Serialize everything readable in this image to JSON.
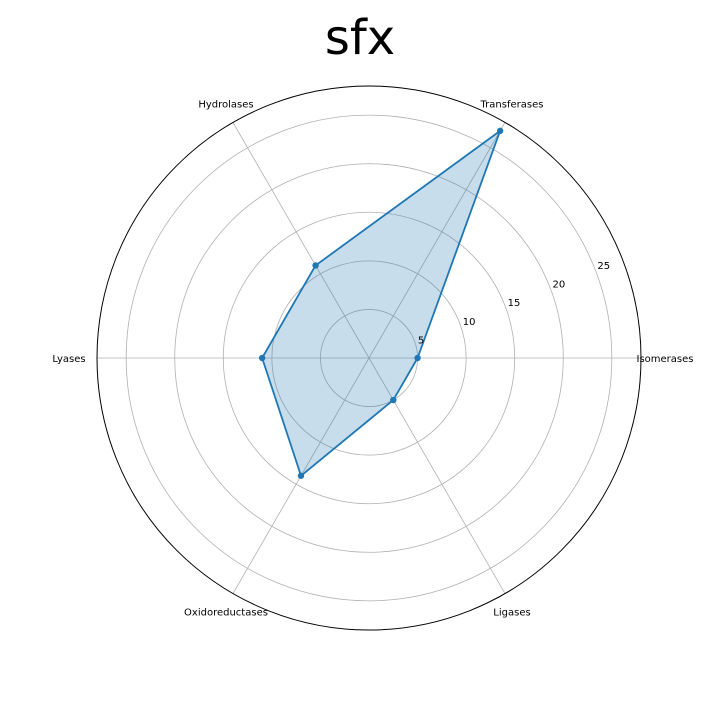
{
  "chart_data": {
    "type": "radar",
    "title": "sfx",
    "categories": [
      "Isomerases",
      "Transferases",
      "Hydrolases",
      "Lyases",
      "Oxidoreductases",
      "Ligases"
    ],
    "series": [
      {
        "values": [
          5,
          27,
          11,
          11,
          14,
          5
        ],
        "color": "#1f77b4",
        "fill_color": "#1f77b4",
        "fill_opacity": 0.25
      }
    ],
    "r_ticks": [
      5,
      10,
      15,
      20,
      25
    ],
    "r_tick_labels": [
      "5",
      "10",
      "15",
      "20",
      "25"
    ],
    "rlim": [
      0,
      28
    ],
    "grid": true,
    "grid_color": "#b0b0b0",
    "outline_color": "#000000"
  }
}
